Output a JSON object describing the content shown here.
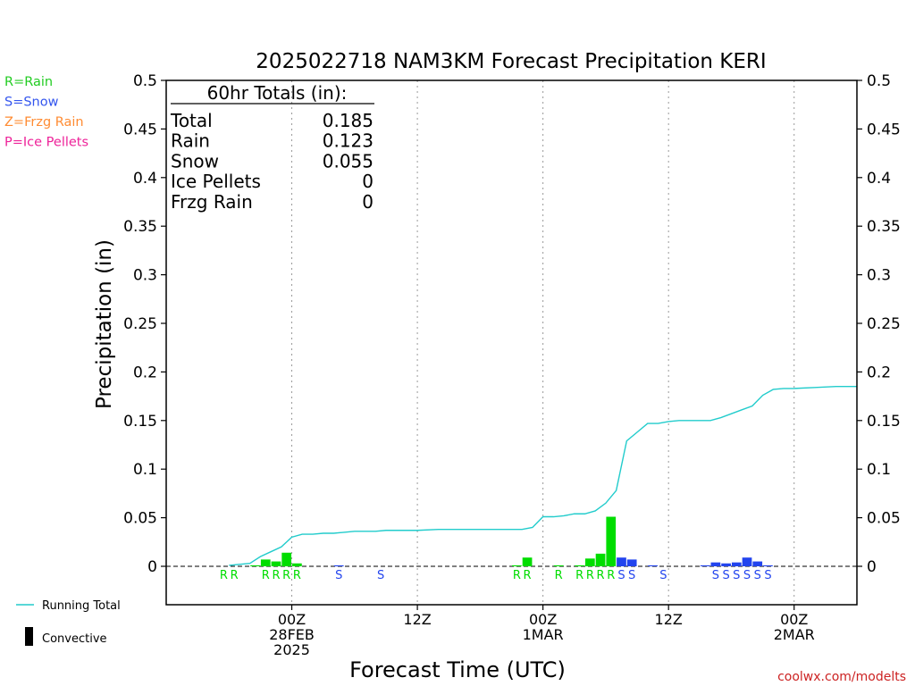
{
  "chart_data": {
    "type": "bar",
    "title": "2025022718 NAM3KM Forecast Precipitation KERI",
    "xlabel": "Forecast Time (UTC)",
    "ylabel": "Precipitation (in)",
    "ylim": [
      0,
      0.5
    ],
    "xlim_hours": [
      -6,
      60
    ],
    "y_ticks": [
      "0",
      "0.05",
      "0.1",
      "0.15",
      "0.2",
      "0.25",
      "0.3",
      "0.35",
      "0.4",
      "0.45",
      "0.5"
    ],
    "x_ticks": [
      {
        "h": 6,
        "lines": [
          "00Z",
          "28FEB",
          "2025"
        ]
      },
      {
        "h": 18,
        "lines": [
          "12Z"
        ]
      },
      {
        "h": 30,
        "lines": [
          "00Z",
          "1MAR"
        ]
      },
      {
        "h": 42,
        "lines": [
          "12Z"
        ]
      },
      {
        "h": 54,
        "lines": [
          "00Z",
          "2MAR"
        ]
      }
    ],
    "legend_types": [
      {
        "label": "R=Rain",
        "color": "#22cc22"
      },
      {
        "label": "S=Snow",
        "color": "#3355ee"
      },
      {
        "label": "Z=Frzg Rain",
        "color": "#ff8c33"
      },
      {
        "label": "P=Ice Pellets",
        "color": "#ee2299"
      }
    ],
    "legend_series": [
      {
        "label": "Running Total",
        "color": "#22cccc"
      },
      {
        "label": "Convective",
        "color": "#000000"
      }
    ],
    "totals": {
      "header": "60hr Totals (in):",
      "rows": [
        {
          "label": "Total",
          "value": "0.185"
        },
        {
          "label": "Rain",
          "value": "0.123"
        },
        {
          "label": "Snow",
          "value": "0.055"
        },
        {
          "label": "Ice Pellets",
          "value": "0"
        },
        {
          "label": "Frzg Rain",
          "value": "0"
        }
      ]
    },
    "colors": {
      "rain": "#00dd00",
      "snow": "#2244ee",
      "running_total": "#22cccc"
    },
    "bars": [
      {
        "h": 3,
        "value": 0.001,
        "type": "R"
      },
      {
        "h": 4,
        "value": 0.007,
        "type": "R"
      },
      {
        "h": 5,
        "value": 0.005,
        "type": "R"
      },
      {
        "h": 6,
        "value": 0.014,
        "type": "R"
      },
      {
        "h": 7,
        "value": 0.003,
        "type": "R"
      },
      {
        "h": 11,
        "value": 0.001,
        "type": "S"
      },
      {
        "h": 28,
        "value": 0.001,
        "type": "R"
      },
      {
        "h": 29,
        "value": 0.009,
        "type": "R"
      },
      {
        "h": 32,
        "value": 0.001,
        "type": "R"
      },
      {
        "h": 34,
        "value": 0.001,
        "type": "R"
      },
      {
        "h": 35,
        "value": 0.008,
        "type": "R"
      },
      {
        "h": 36,
        "value": 0.013,
        "type": "R"
      },
      {
        "h": 37,
        "value": 0.051,
        "type": "R"
      },
      {
        "h": 38,
        "value": 0.009,
        "type": "S"
      },
      {
        "h": 39,
        "value": 0.007,
        "type": "S"
      },
      {
        "h": 41,
        "value": 0.001,
        "type": "S"
      },
      {
        "h": 46,
        "value": 0.001,
        "type": "S"
      },
      {
        "h": 47,
        "value": 0.004,
        "type": "S"
      },
      {
        "h": 48,
        "value": 0.003,
        "type": "S"
      },
      {
        "h": 49,
        "value": 0.004,
        "type": "S"
      },
      {
        "h": 50,
        "value": 0.009,
        "type": "S"
      },
      {
        "h": 51,
        "value": 0.005,
        "type": "S"
      },
      {
        "h": 52,
        "value": 0.001,
        "type": "S"
      }
    ],
    "ptype_labels": [
      {
        "h": 0,
        "type": "R"
      },
      {
        "h": 1,
        "type": "R"
      },
      {
        "h": 4,
        "type": "R"
      },
      {
        "h": 5,
        "type": "R"
      },
      {
        "h": 6,
        "type": "R"
      },
      {
        "h": 7,
        "type": "R"
      },
      {
        "h": 11,
        "type": "S"
      },
      {
        "h": 15,
        "type": "S"
      },
      {
        "h": 28,
        "type": "R"
      },
      {
        "h": 29,
        "type": "R"
      },
      {
        "h": 32,
        "type": "R"
      },
      {
        "h": 34,
        "type": "R"
      },
      {
        "h": 35,
        "type": "R"
      },
      {
        "h": 36,
        "type": "R"
      },
      {
        "h": 37,
        "type": "R"
      },
      {
        "h": 38,
        "type": "S"
      },
      {
        "h": 39,
        "type": "S"
      },
      {
        "h": 42,
        "type": "S"
      },
      {
        "h": 47,
        "type": "S"
      },
      {
        "h": 48,
        "type": "S"
      },
      {
        "h": 49,
        "type": "S"
      },
      {
        "h": 50,
        "type": "S"
      },
      {
        "h": 51,
        "type": "S"
      },
      {
        "h": 52,
        "type": "S"
      }
    ],
    "running_total": {
      "h": [
        0,
        2,
        3,
        4,
        5,
        6,
        7,
        8,
        9,
        10,
        11,
        12,
        13,
        14,
        15,
        16,
        17,
        18,
        20,
        22,
        24,
        26,
        28,
        29,
        30,
        31,
        32,
        33,
        34,
        35,
        36,
        37,
        38,
        39,
        40,
        41,
        42,
        43,
        44,
        45,
        46,
        47,
        48,
        49,
        50,
        51,
        52,
        53,
        54,
        56,
        58,
        60
      ],
      "values": [
        0.001,
        0.003,
        0.01,
        0.015,
        0.02,
        0.03,
        0.033,
        0.033,
        0.034,
        0.034,
        0.035,
        0.036,
        0.036,
        0.036,
        0.037,
        0.037,
        0.037,
        0.037,
        0.038,
        0.038,
        0.038,
        0.038,
        0.038,
        0.04,
        0.051,
        0.051,
        0.052,
        0.054,
        0.054,
        0.057,
        0.065,
        0.078,
        0.129,
        0.138,
        0.147,
        0.147,
        0.149,
        0.15,
        0.15,
        0.15,
        0.15,
        0.153,
        0.157,
        0.161,
        0.165,
        0.176,
        0.182,
        0.183,
        0.183,
        0.184,
        0.185,
        0.185
      ]
    }
  },
  "watermark": "coolwx.com/modelts"
}
